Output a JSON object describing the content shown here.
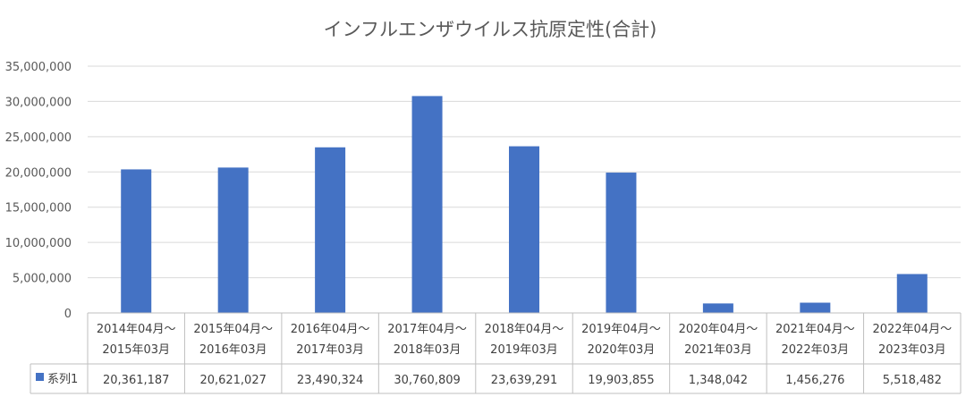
{
  "chart_data": {
    "type": "bar",
    "title": "インフルエンザウイルス抗原定性(合計)",
    "categories": [
      [
        "2014年04月～",
        "2015年03月"
      ],
      [
        "2015年04月～",
        "2016年03月"
      ],
      [
        "2016年04月～",
        "2017年03月"
      ],
      [
        "2017年04月～",
        "2018年03月"
      ],
      [
        "2018年04月～",
        "2019年03月"
      ],
      [
        "2019年04月～",
        "2020年03月"
      ],
      [
        "2020年04月～",
        "2021年03月"
      ],
      [
        "2021年04月～",
        "2022年03月"
      ],
      [
        "2022年04月～",
        "2023年03月"
      ]
    ],
    "series": [
      {
        "name": "系列1",
        "color": "#4472C4",
        "values": [
          20361187,
          20621027,
          23490324,
          30760809,
          23639291,
          19903855,
          1348042,
          1456276,
          5518482
        ],
        "value_labels": [
          "20,361,187",
          "20,621,027",
          "23,490,324",
          "30,760,809",
          "23,639,291",
          "19,903,855",
          "1,348,042",
          "1,456,276",
          "5,518,482"
        ]
      }
    ],
    "ylim": [
      0,
      35000000
    ],
    "yticks": [
      0,
      5000000,
      10000000,
      15000000,
      20000000,
      25000000,
      30000000,
      35000000
    ],
    "ytick_labels": [
      "0",
      "5,000,000",
      "10,000,000",
      "15,000,000",
      "20,000,000",
      "25,000,000",
      "30,000,000",
      "35,000,000"
    ],
    "grid": true,
    "data_table": true,
    "xlabel": "",
    "ylabel": ""
  }
}
